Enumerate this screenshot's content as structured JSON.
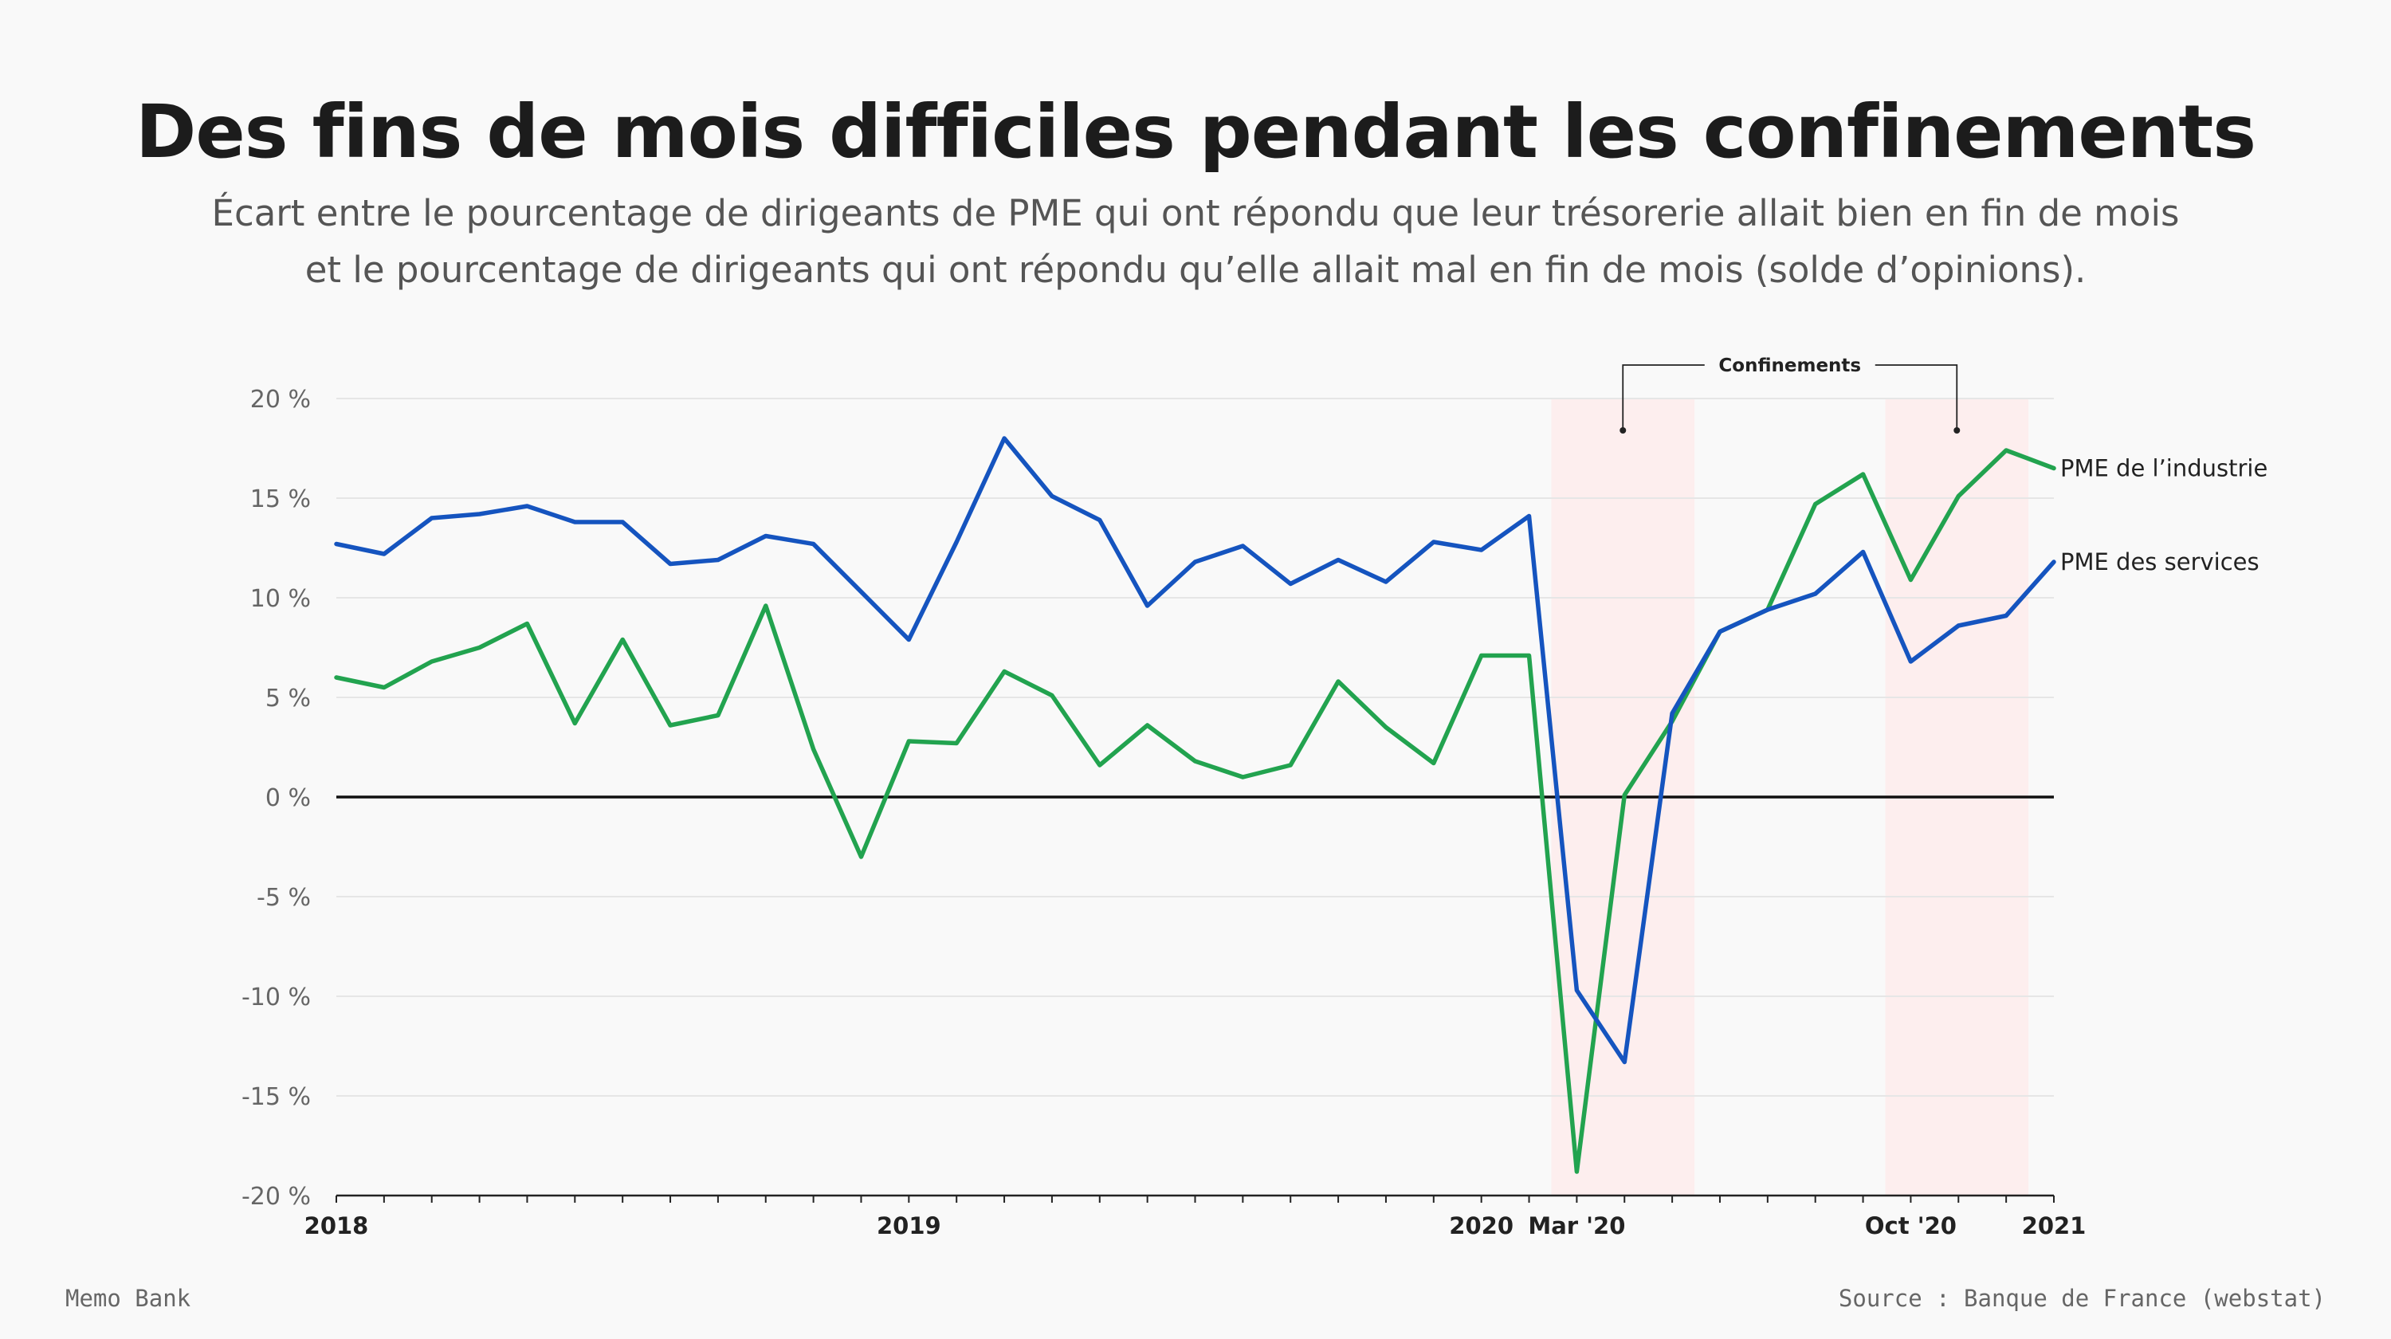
{
  "title": "Des fins de mois difficiles pendant les confinements",
  "subtitle_line1": "Écart entre le pourcentage de dirigeants de PME qui ont répondu que leur trésorerie allait bien en fin de mois",
  "subtitle_line2": "et le pourcentage de dirigeants qui ont répondu qu’elle allait mal en fin de mois (solde d’opinions).",
  "footer": {
    "brand": "Memo Bank",
    "source": "Source : Banque de France (webstat)"
  },
  "colors": {
    "industrie": "#22a34f",
    "services": "#1554bf",
    "lockdown_band": "#fdeeee",
    "zero_line": "#111111",
    "grid": "#e6e6e6"
  },
  "chart_data": {
    "type": "line",
    "x_start": "2018-01",
    "x_end": "2021-01",
    "ylim": [
      -20,
      20
    ],
    "y_ticks": [
      {
        "value": 20,
        "label": "20 %"
      },
      {
        "value": 15,
        "label": "15 %"
      },
      {
        "value": 10,
        "label": "10 %"
      },
      {
        "value": 5,
        "label": "5 %"
      },
      {
        "value": 0,
        "label": "0 %"
      },
      {
        "value": -5,
        "label": "-5 %"
      },
      {
        "value": -10,
        "label": "-10 %"
      },
      {
        "value": -15,
        "label": "-15 %"
      },
      {
        "value": -20,
        "label": "-20 %"
      }
    ],
    "x_ticks": [
      {
        "label": "2018",
        "month": 0
      },
      {
        "label": "2019",
        "month": 12
      },
      {
        "label": "2020",
        "month": 24
      },
      {
        "label": "Mar '20",
        "month": 26
      },
      {
        "label": "Oct '20",
        "month": 33
      },
      {
        "label": "2021",
        "month": 36
      }
    ],
    "grid": true,
    "annotation": "Confinements",
    "lockdowns": [
      {
        "start": "2020-02-15",
        "end": "2020-05-15"
      },
      {
        "start": "2020-09-15",
        "end": "2020-12-15"
      }
    ],
    "series": [
      {
        "name": "PME de l’industrie",
        "key": "industrie",
        "values": [
          6.0,
          5.5,
          6.8,
          7.5,
          8.7,
          3.7,
          7.9,
          3.6,
          4.1,
          9.6,
          2.4,
          -3.0,
          2.8,
          2.7,
          6.3,
          5.1,
          1.6,
          3.6,
          1.8,
          1.0,
          1.6,
          5.8,
          3.5,
          1.7,
          7.1,
          7.1,
          -18.8,
          0.1,
          3.8,
          8.3,
          9.4,
          14.7,
          16.2,
          10.9,
          15.1,
          17.4,
          16.5
        ]
      },
      {
        "name": "PME des services",
        "key": "services",
        "values": [
          12.7,
          12.2,
          14.0,
          14.2,
          14.6,
          13.8,
          13.8,
          11.7,
          11.9,
          13.1,
          12.7,
          10.3,
          7.9,
          12.8,
          18.0,
          15.1,
          13.9,
          9.6,
          11.8,
          12.6,
          10.7,
          11.9,
          10.8,
          12.8,
          12.4,
          14.1,
          -9.7,
          -13.3,
          4.2,
          8.3,
          9.4,
          10.2,
          12.3,
          6.8,
          8.6,
          9.1,
          11.8
        ]
      }
    ]
  }
}
